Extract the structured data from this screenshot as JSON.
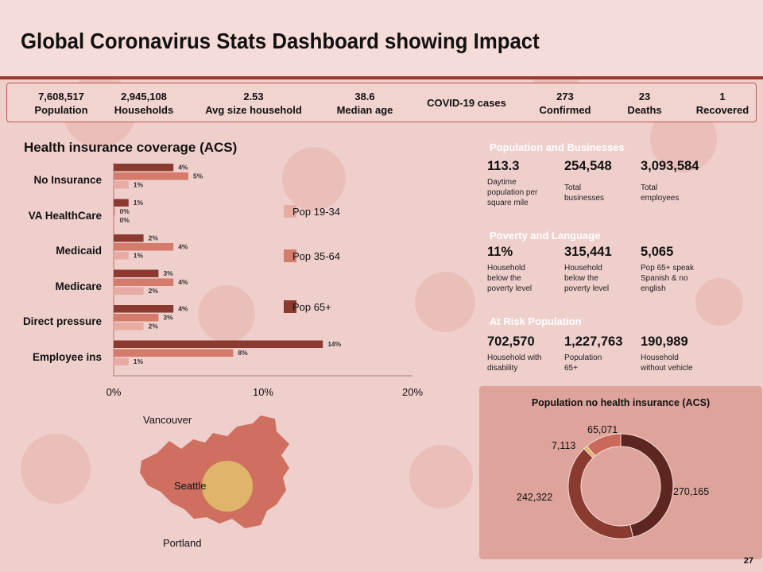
{
  "title": "Global  Coronavirus Stats Dashboard showing Impact",
  "stats": [
    {
      "value": "7,608,517",
      "label": "Population"
    },
    {
      "value": "2,945,108",
      "label": "Households"
    },
    {
      "value": "2.53",
      "label": "Avg size household"
    },
    {
      "value": "38.6",
      "label": "Median age"
    },
    {
      "value": "",
      "label": "COVID-19 cases"
    },
    {
      "value": "273",
      "label": "Confirmed"
    },
    {
      "value": "23",
      "label": "Deaths"
    },
    {
      "value": "1",
      "label": "Recovered"
    }
  ],
  "insurance": {
    "title": "Health insurance coverage (ACS)"
  },
  "chart_data": {
    "type": "bar",
    "orientation": "horizontal",
    "title": "Health insurance coverage (ACS)",
    "categories": [
      "No Insurance",
      "VA HealthCare",
      "Medicaid",
      "Medicare",
      "Direct pressure",
      "Employee ins"
    ],
    "series": [
      {
        "name": "Pop 65+",
        "color": "#8b3a2f",
        "values": [
          4,
          1,
          2,
          3,
          4,
          14
        ],
        "labels": [
          "4%",
          "1%",
          "2%",
          "3%",
          "4%",
          "14%"
        ]
      },
      {
        "name": "Pop 35-64",
        "color": "#d57b6c",
        "values": [
          5,
          0,
          4,
          4,
          3,
          8
        ],
        "labels": [
          "5%",
          "0%",
          "4%",
          "4%",
          "3%",
          "8%"
        ]
      },
      {
        "name": "Pop 19-34",
        "color": "#e8aba3",
        "values": [
          1,
          0,
          1,
          2,
          2,
          1
        ],
        "labels": [
          "1%",
          "0%",
          "1%",
          "2%",
          "2%",
          "1%"
        ]
      }
    ],
    "xlim": [
      0,
      20
    ],
    "xticks": [
      "0%",
      "10%",
      "20%"
    ],
    "legend_order": [
      "Pop 19-34",
      "Pop 35-64",
      "Pop 65+"
    ]
  },
  "pop_business": {
    "title": "Population and Businesses",
    "color": "#8b3a2f",
    "items": [
      {
        "value": "113.3",
        "desc": "Daytime population per square mile"
      },
      {
        "value": "254,548",
        "desc": "Total businesses"
      },
      {
        "value": "3,093,584",
        "desc": "Total employees"
      }
    ]
  },
  "poverty": {
    "title": "Poverty and Language",
    "color": "#d47a33",
    "items": [
      {
        "value": "11%",
        "desc": "Household below the poverty level"
      },
      {
        "value": "315,441",
        "desc": "Household below the poverty level"
      },
      {
        "value": "5,065",
        "desc": "Pop 65+ speak Spanish & no english"
      }
    ]
  },
  "at_risk": {
    "title": "At Risk Population",
    "color": "#dfb870",
    "items": [
      {
        "value": "702,570",
        "desc": "Household with disability"
      },
      {
        "value": "1,227,763",
        "desc": "Population 65+"
      },
      {
        "value": "190,989",
        "desc": "Household without vehicle"
      }
    ]
  },
  "donut": {
    "title": "Population no health insurance (ACS)",
    "slices": [
      {
        "label": "270,165",
        "value": 270165,
        "color": "#5e2620"
      },
      {
        "label": "242,322",
        "value": 242322,
        "color": "#8b3a2f"
      },
      {
        "label": "7,113",
        "value": 7113,
        "color": "#e0b46a"
      },
      {
        "label": "65,071",
        "value": 65071,
        "color": "#c9695a"
      }
    ]
  },
  "map": {
    "labels": [
      "Vancouver",
      "Seattle",
      "Portland"
    ]
  },
  "page_number": "27"
}
